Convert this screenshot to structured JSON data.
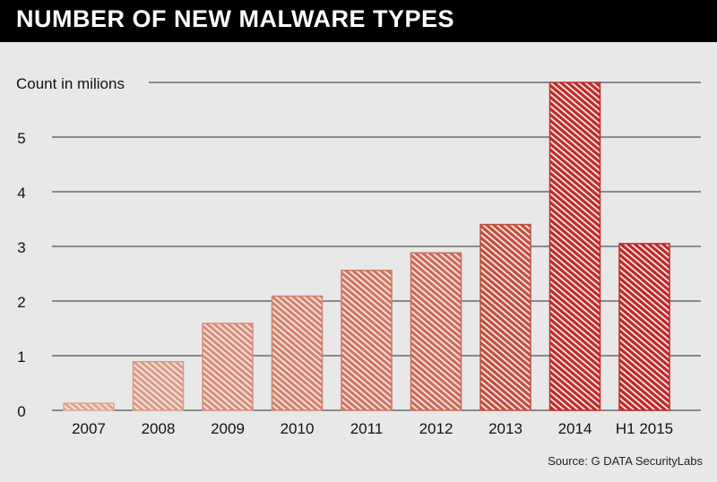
{
  "chart_data": {
    "type": "bar",
    "title": "NUMBER OF NEW MALWARE TYPES",
    "ylabel": "Count in milions",
    "categories": [
      "2007",
      "2008",
      "2009",
      "2010",
      "2011",
      "2012",
      "2013",
      "2014",
      "H1 2015"
    ],
    "values": [
      0.13,
      0.89,
      1.59,
      2.09,
      2.56,
      2.88,
      3.4,
      6.0,
      3.05
    ],
    "y_ticks": [
      "0",
      "1",
      "2",
      "3",
      "4",
      "5"
    ],
    "ylim": [
      0,
      6
    ],
    "grid": true,
    "source": "Source: G DATA SecurityLabs",
    "colors": [
      "#e0a590",
      "#dc9a86",
      "#d78d79",
      "#d4826d",
      "#cf7561",
      "#cc6a56",
      "#c24e3f",
      "#bf2a2a",
      "#c02626"
    ],
    "background": "#e8e8e8"
  }
}
